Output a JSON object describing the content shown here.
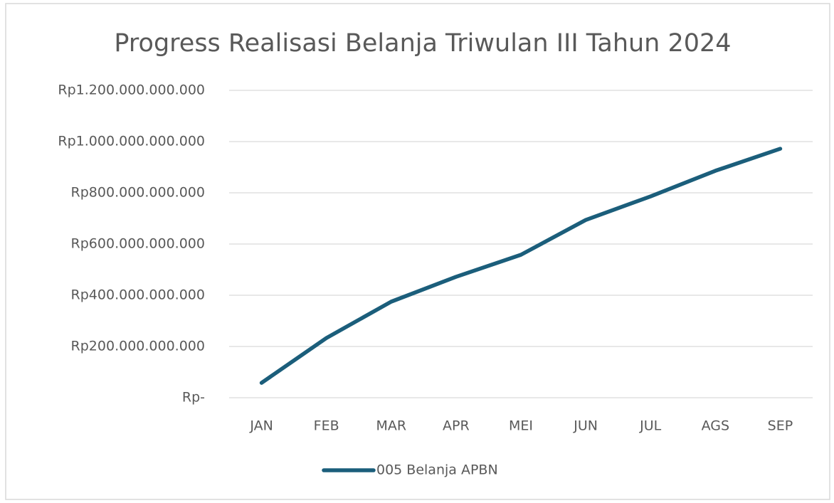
{
  "chart_data": {
    "type": "line",
    "title": "Progress Realisasi Belanja Triwulan III Tahun 2024",
    "categories": [
      "JAN",
      "FEB",
      "MAR",
      "APR",
      "MEI",
      "JUN",
      "JUL",
      "AGS",
      "SEP"
    ],
    "series": [
      {
        "name": "005 Belanja APBN",
        "color": "#1b5e7b",
        "values": [
          58000000000,
          233000000000,
          375000000000,
          472000000000,
          558000000000,
          694000000000,
          786000000000,
          886000000000,
          972000000000
        ]
      }
    ],
    "ylim": [
      0,
      1200000000000
    ],
    "yticks": [
      {
        "value": 0,
        "label": "Rp-"
      },
      {
        "value": 200000000000,
        "label": "Rp200.000.000.000"
      },
      {
        "value": 400000000000,
        "label": "Rp400.000.000.000"
      },
      {
        "value": 600000000000,
        "label": "Rp600.000.000.000"
      },
      {
        "value": 800000000000,
        "label": "Rp800.000.000.000"
      },
      {
        "value": 1000000000000,
        "label": "Rp1.000.000.000.000"
      },
      {
        "value": 1200000000000,
        "label": "Rp1.200.000.000.000"
      }
    ],
    "grid": true,
    "legend": "bottom"
  }
}
